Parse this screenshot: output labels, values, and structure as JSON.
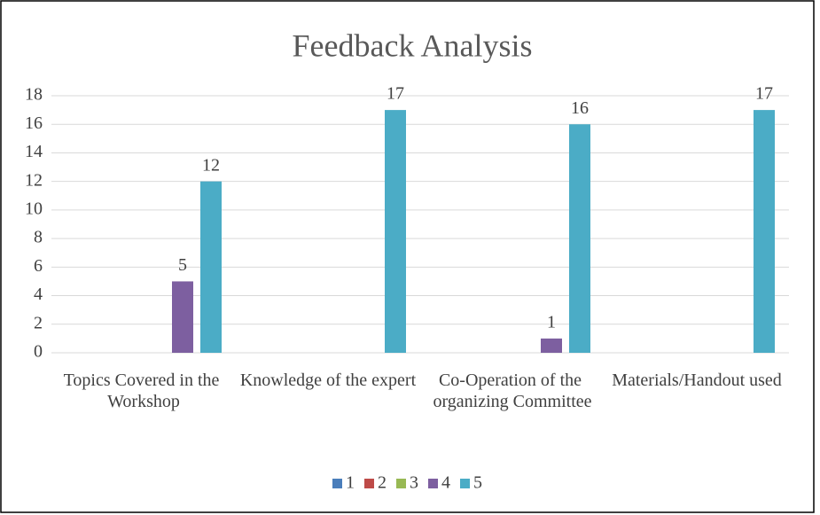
{
  "chart_data": {
    "type": "bar",
    "title": "Feedback Analysis",
    "categories": [
      "Topics Covered in the Workshop",
      "Knowledge of the expert",
      "Co-Operation of the organizing Committee",
      "Materials/Handout used"
    ],
    "series": [
      {
        "name": "1",
        "color": "#4a7ebb",
        "values": [
          null,
          null,
          null,
          null
        ]
      },
      {
        "name": "2",
        "color": "#be4b48",
        "values": [
          null,
          null,
          null,
          null
        ]
      },
      {
        "name": "3",
        "color": "#98b954",
        "values": [
          null,
          null,
          null,
          null
        ]
      },
      {
        "name": "4",
        "color": "#7d5fa0",
        "values": [
          5,
          null,
          1,
          null
        ]
      },
      {
        "name": "5",
        "color": "#4bacc6",
        "values": [
          12,
          17,
          16,
          17
        ]
      }
    ],
    "ylim": [
      0,
      18
    ],
    "yticks": [
      0,
      2,
      4,
      6,
      8,
      10,
      12,
      14,
      16,
      18
    ],
    "grid": true,
    "legend": "bottom"
  }
}
